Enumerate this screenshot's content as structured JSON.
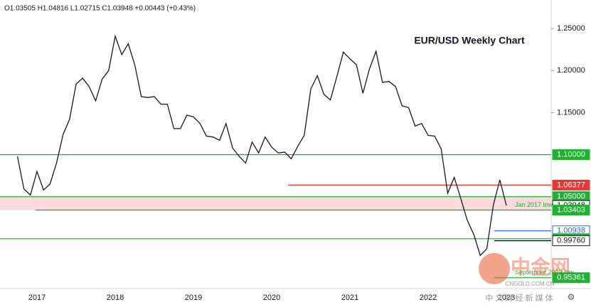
{
  "chart_data": {
    "type": "line",
    "title": "EUR/USD Weekly Chart",
    "ohlc_header": "O1.03505 H1.04816 L1.02715 C1.03948 +0.00443 (+0.43%)",
    "categories": [
      null,
      null,
      null,
      "2017",
      null,
      null,
      null,
      null,
      null,
      null,
      null,
      null,
      null,
      null,
      null,
      "2018",
      null,
      null,
      null,
      null,
      null,
      null,
      null,
      null,
      null,
      null,
      null,
      "2019",
      null,
      null,
      null,
      null,
      null,
      null,
      null,
      null,
      null,
      null,
      null,
      "2020",
      null,
      null,
      null,
      null,
      null,
      null,
      null,
      null,
      null,
      null,
      null,
      "2021",
      null,
      null,
      null,
      null,
      null,
      null,
      null,
      null,
      null,
      null,
      null,
      "2022",
      null,
      null,
      null,
      null,
      null,
      null,
      null,
      null,
      null,
      null,
      null,
      "2023"
    ],
    "series": [
      {
        "name": "EUR/USD",
        "color": "#131722",
        "values": [
          1.098,
          1.059,
          1.052,
          1.08,
          1.058,
          1.065,
          1.09,
          1.124,
          1.142,
          1.184,
          1.191,
          1.181,
          1.164,
          1.19,
          1.2,
          1.241,
          1.219,
          1.232,
          1.207,
          1.169,
          1.168,
          1.169,
          1.16,
          1.16,
          1.131,
          1.131,
          1.147,
          1.145,
          1.137,
          1.122,
          1.121,
          1.117,
          1.137,
          1.108,
          1.098,
          1.09,
          1.115,
          1.102,
          1.121,
          1.109,
          1.102,
          1.103,
          1.095,
          1.11,
          1.123,
          1.178,
          1.194,
          1.172,
          1.165,
          1.193,
          1.222,
          1.214,
          1.207,
          1.173,
          1.202,
          1.223,
          1.186,
          1.187,
          1.181,
          1.158,
          1.156,
          1.134,
          1.137,
          1.123,
          1.122,
          1.107,
          1.054,
          1.073,
          1.048,
          1.022,
          1.005,
          0.98,
          0.988,
          1.04,
          1.07,
          1.03948
        ]
      }
    ],
    "ylim": [
      0.9407,
      1.284
    ],
    "yticks": [
      {
        "value": 1.25,
        "label": "1.25000"
      },
      {
        "value": 1.2,
        "label": "1.20000"
      },
      {
        "value": 1.15,
        "label": "1.15000"
      }
    ],
    "levels": [
      {
        "value": 1.1,
        "label": "1.10000",
        "color": "#22b033",
        "line": "full",
        "label_fill": "#22b033",
        "label_color": "#ffffff"
      },
      {
        "value": 1.06377,
        "label": "1.06377",
        "color": "#e53935",
        "line": "from-2020",
        "label_fill": "#e53935",
        "label_color": "#ffffff"
      },
      {
        "value": 1.05,
        "label": "1.05000",
        "color": "#22b033",
        "line": "full",
        "label_fill": "#22b033",
        "label_color": "#ffffff"
      },
      {
        "value": 1.03948,
        "label": "1.03948",
        "color": "#131722",
        "line": "none",
        "label_fill": "#ffffff",
        "label_color": "#131722"
      },
      {
        "value": 1.03403,
        "label": "1.03403",
        "color": "#22b033",
        "line": "from-2017",
        "label_fill": "#22b033",
        "label_color": "#ffffff"
      },
      {
        "value": 1.00938,
        "label": "1.00938",
        "color": "#2962ff",
        "line": "recent",
        "label_fill": "#ffffff",
        "label_color": "#2962ff"
      },
      {
        "value": 1.0,
        "label": "1.00000",
        "color": "#22b033",
        "line": "full",
        "label_fill": "#22b033",
        "label_color": "#ffffff"
      },
      {
        "value": 0.9976,
        "label": "0.99760",
        "color": "#131722",
        "line": "recent",
        "label_fill": "#ffffff",
        "label_color": "#131722"
      },
      {
        "value": 0.95361,
        "label": "0.95361",
        "color": "#22b033",
        "line": "recent",
        "label_fill": "#22b033",
        "label_color": "#ffffff"
      }
    ],
    "zone_color": "#fadadd",
    "annotations": [
      {
        "text": "Jan 2017 low",
        "level": 4
      },
      {
        "text": "September 2022 low",
        "level": 8
      }
    ],
    "watermark": {
      "brand": "中金网",
      "site": "CNGOLD.COM.CN",
      "tagline": "中 文 财 经 新 媒 体"
    }
  }
}
